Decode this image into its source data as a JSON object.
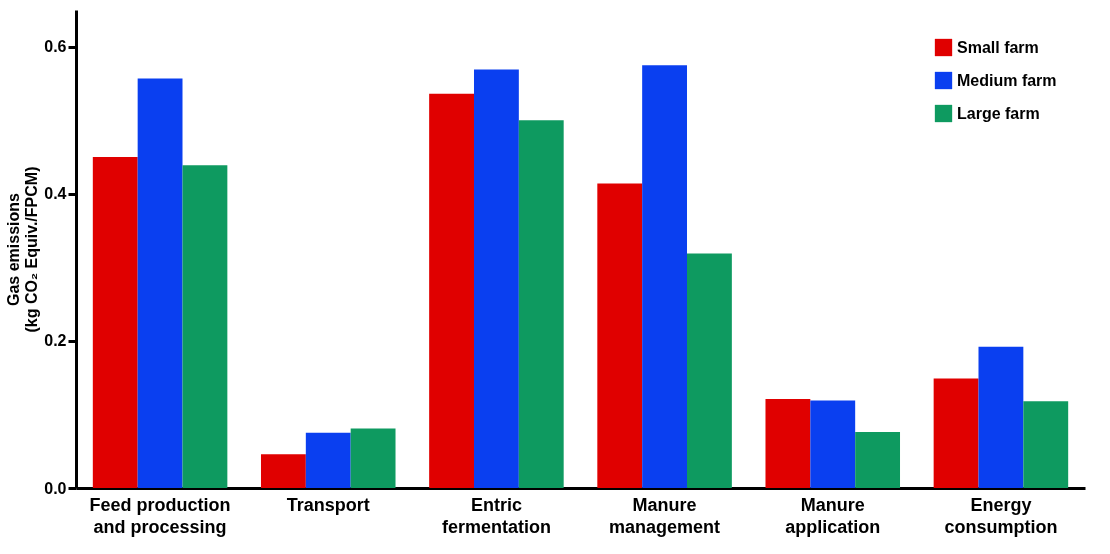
{
  "chart_data": {
    "type": "bar",
    "ylabel": "Gas emissions\n(kg CO₂ Equiv./FPCM)",
    "categories": [
      "Feed production\nand processing",
      "Transport",
      "Entric\nfermentation",
      "Manure\nmanagement",
      "Manure\napplication",
      "Energy\nconsumption"
    ],
    "series": [
      {
        "name": "Small farm",
        "color": "#e00000",
        "values": [
          0.45,
          0.046,
          0.536,
          0.414,
          0.121,
          0.149
        ]
      },
      {
        "name": "Medium farm",
        "color": "#0a3ff0",
        "values": [
          0.557,
          0.075,
          0.569,
          0.575,
          0.119,
          0.192
        ]
      },
      {
        "name": "Large farm",
        "color": "#0e9a60",
        "values": [
          0.439,
          0.081,
          0.5,
          0.319,
          0.076,
          0.118
        ]
      }
    ],
    "ylim": [
      0,
      0.65
    ],
    "yticks": [
      {
        "value": 0,
        "label": "0.0"
      },
      0.2,
      0.4,
      0.6
    ],
    "grid": false,
    "legend": "top right"
  }
}
